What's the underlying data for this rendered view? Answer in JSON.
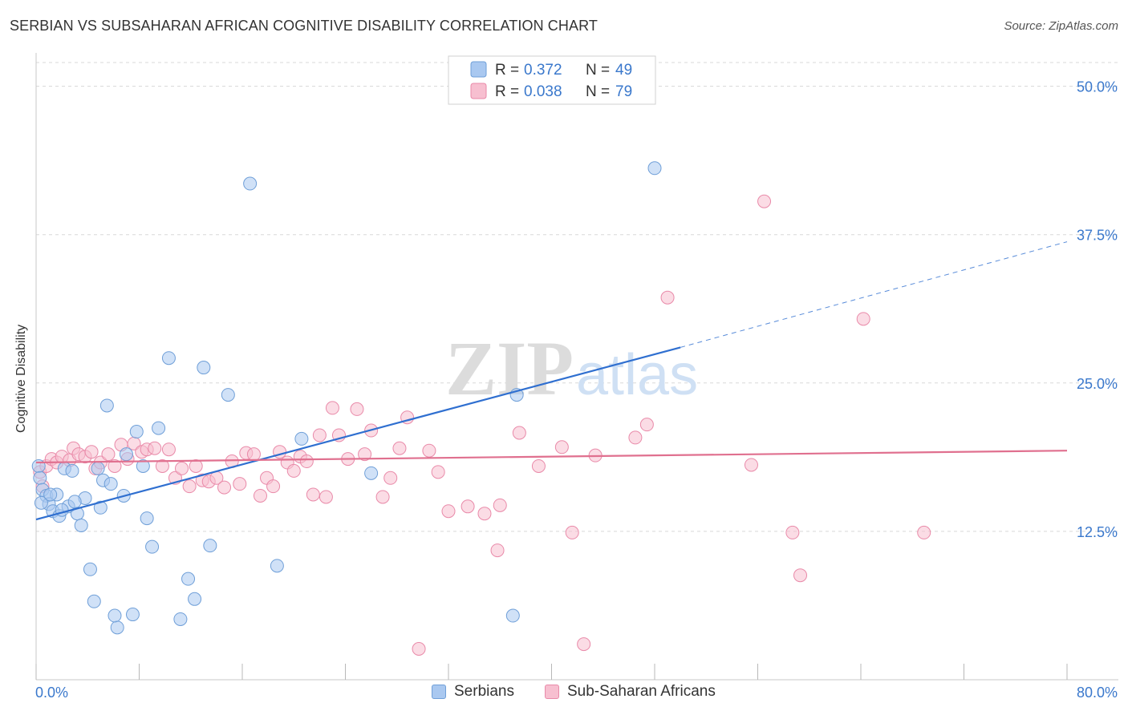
{
  "header": {
    "title": "SERBIAN VS SUBSAHARAN AFRICAN COGNITIVE DISABILITY CORRELATION CHART",
    "source": "Source: ZipAtlas.com"
  },
  "watermark": {
    "zip": "ZIP",
    "atlas": "atlas"
  },
  "colors": {
    "serbians_fill": "#a9c8f0",
    "serbians_stroke": "#6f9fd8",
    "serbians_line": "#2f6fd0",
    "africans_fill": "#f7bfd0",
    "africans_stroke": "#e98aa9",
    "africans_line": "#e0708f",
    "tick_label": "#3a78cc",
    "grid": "#d8d8d8"
  },
  "legend_top": {
    "rows": [
      {
        "r_label": "R =",
        "r_value": "0.372",
        "n_label": "N =",
        "n_value": "49"
      },
      {
        "r_label": "R =",
        "r_value": "0.038",
        "n_label": "N =",
        "n_value": "79"
      }
    ]
  },
  "chart_data": {
    "type": "scatter",
    "title": "SERBIAN VS SUBSAHARAN AFRICAN COGNITIVE DISABILITY CORRELATION CHART",
    "xlabel": "",
    "ylabel": "Cognitive Disability",
    "xlim": [
      0,
      80
    ],
    "ylim": [
      0,
      52
    ],
    "x_tick_labels": [
      "0.0%",
      "80.0%"
    ],
    "y_ticks": [
      12.5,
      25.0,
      37.5,
      50.0
    ],
    "y_tick_labels": [
      "12.5%",
      "25.0%",
      "37.5%",
      "50.0%"
    ],
    "grid": true,
    "legend_position": "top-center and bottom",
    "series": [
      {
        "name": "Serbians",
        "r": 0.372,
        "n": 49,
        "trend": {
          "x0": 0,
          "y0": 13.5,
          "x1": 50,
          "y1": 28.0,
          "dashed_to_x": 80,
          "dashed_to_y": 36.9
        },
        "points": [
          [
            0.2,
            18.0
          ],
          [
            0.3,
            17.0
          ],
          [
            0.5,
            16.0
          ],
          [
            0.8,
            15.5
          ],
          [
            1.0,
            14.8
          ],
          [
            1.3,
            14.2
          ],
          [
            1.6,
            15.6
          ],
          [
            1.8,
            13.8
          ],
          [
            2.2,
            17.8
          ],
          [
            2.5,
            14.6
          ],
          [
            2.8,
            17.6
          ],
          [
            3.2,
            14.0
          ],
          [
            3.5,
            13.0
          ],
          [
            3.8,
            15.3
          ],
          [
            4.2,
            9.3
          ],
          [
            4.5,
            6.6
          ],
          [
            4.8,
            17.8
          ],
          [
            5.2,
            16.8
          ],
          [
            5.5,
            23.1
          ],
          [
            5.8,
            16.5
          ],
          [
            6.3,
            4.4
          ],
          [
            6.8,
            15.5
          ],
          [
            7.0,
            19.0
          ],
          [
            7.5,
            5.5
          ],
          [
            7.8,
            20.9
          ],
          [
            8.3,
            18.0
          ],
          [
            8.6,
            13.6
          ],
          [
            9.0,
            11.2
          ],
          [
            9.5,
            21.2
          ],
          [
            10.3,
            27.1
          ],
          [
            11.2,
            5.1
          ],
          [
            11.8,
            8.5
          ],
          [
            12.3,
            6.8
          ],
          [
            13.0,
            26.3
          ],
          [
            13.5,
            11.3
          ],
          [
            14.9,
            24.0
          ],
          [
            16.6,
            41.8
          ],
          [
            18.7,
            9.6
          ],
          [
            20.6,
            20.3
          ],
          [
            26.0,
            17.4
          ],
          [
            37.0,
            5.4
          ],
          [
            37.3,
            24.0
          ],
          [
            48.0,
            43.1
          ],
          [
            0.4,
            14.9
          ],
          [
            2.0,
            14.3
          ],
          [
            6.1,
            5.4
          ],
          [
            3.0,
            15.0
          ],
          [
            1.1,
            15.6
          ],
          [
            5.0,
            14.5
          ]
        ]
      },
      {
        "name": "Sub-Saharan Africans",
        "r": 0.038,
        "n": 79,
        "trend": {
          "x0": 0,
          "y0": 18.3,
          "x1": 80,
          "y1": 19.3
        },
        "points": [
          [
            0.3,
            17.5
          ],
          [
            0.5,
            16.3
          ],
          [
            0.8,
            18.0
          ],
          [
            1.2,
            18.6
          ],
          [
            1.6,
            18.3
          ],
          [
            2.0,
            18.8
          ],
          [
            2.6,
            18.5
          ],
          [
            2.9,
            19.5
          ],
          [
            3.3,
            19.0
          ],
          [
            3.8,
            18.8
          ],
          [
            4.3,
            19.2
          ],
          [
            4.6,
            17.8
          ],
          [
            5.0,
            18.3
          ],
          [
            5.6,
            19.0
          ],
          [
            6.1,
            18.0
          ],
          [
            6.6,
            19.8
          ],
          [
            7.1,
            18.6
          ],
          [
            7.6,
            19.9
          ],
          [
            8.2,
            19.2
          ],
          [
            8.6,
            19.4
          ],
          [
            9.2,
            19.5
          ],
          [
            9.8,
            18.0
          ],
          [
            10.3,
            19.4
          ],
          [
            10.8,
            17.0
          ],
          [
            11.3,
            17.8
          ],
          [
            11.9,
            16.3
          ],
          [
            12.4,
            18.0
          ],
          [
            12.9,
            16.8
          ],
          [
            13.4,
            16.7
          ],
          [
            14.0,
            17.0
          ],
          [
            14.6,
            16.2
          ],
          [
            15.2,
            18.4
          ],
          [
            15.8,
            16.5
          ],
          [
            16.3,
            19.1
          ],
          [
            16.9,
            19.0
          ],
          [
            17.4,
            15.5
          ],
          [
            17.9,
            17.0
          ],
          [
            18.4,
            16.3
          ],
          [
            18.9,
            19.2
          ],
          [
            19.5,
            18.3
          ],
          [
            20.0,
            17.6
          ],
          [
            20.5,
            18.8
          ],
          [
            21.0,
            18.4
          ],
          [
            21.5,
            15.6
          ],
          [
            22.0,
            20.6
          ],
          [
            22.5,
            15.4
          ],
          [
            23.0,
            22.9
          ],
          [
            23.5,
            20.6
          ],
          [
            24.2,
            18.6
          ],
          [
            24.9,
            22.8
          ],
          [
            25.5,
            19.0
          ],
          [
            26.0,
            21.0
          ],
          [
            26.9,
            15.4
          ],
          [
            27.5,
            17.0
          ],
          [
            28.2,
            19.5
          ],
          [
            28.8,
            22.1
          ],
          [
            29.7,
            2.6
          ],
          [
            30.5,
            19.3
          ],
          [
            31.2,
            17.5
          ],
          [
            32.0,
            14.2
          ],
          [
            33.5,
            14.6
          ],
          [
            34.8,
            14.0
          ],
          [
            35.8,
            10.9
          ],
          [
            36.0,
            14.7
          ],
          [
            37.5,
            20.8
          ],
          [
            39.0,
            18.0
          ],
          [
            40.8,
            19.6
          ],
          [
            41.6,
            12.4
          ],
          [
            42.5,
            3.0
          ],
          [
            43.4,
            18.9
          ],
          [
            46.5,
            20.4
          ],
          [
            47.4,
            21.5
          ],
          [
            49.0,
            32.2
          ],
          [
            55.5,
            18.1
          ],
          [
            56.5,
            40.3
          ],
          [
            58.7,
            12.4
          ],
          [
            59.3,
            8.8
          ],
          [
            64.2,
            30.4
          ],
          [
            68.9,
            12.4
          ]
        ]
      }
    ]
  },
  "bottom_legend": {
    "items": [
      {
        "label": "Serbians"
      },
      {
        "label": "Sub-Saharan Africans"
      }
    ]
  }
}
